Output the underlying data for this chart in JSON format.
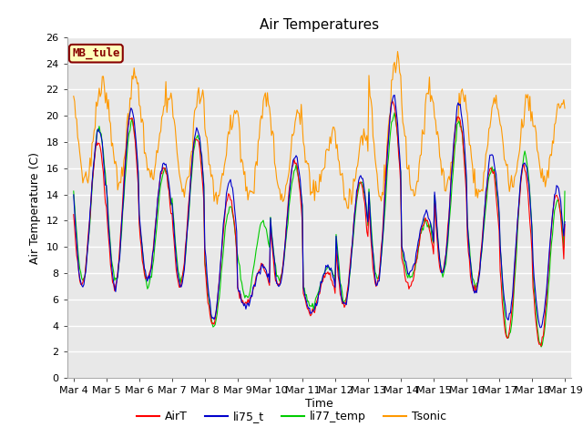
{
  "title": "Air Temperatures",
  "xlabel": "Time",
  "ylabel": "Air Temperature (C)",
  "ylim": [
    0,
    26
  ],
  "yticks": [
    0,
    2,
    4,
    6,
    8,
    10,
    12,
    14,
    16,
    18,
    20,
    22,
    24,
    26
  ],
  "xtick_labels": [
    "Mar 4",
    "Mar 5",
    "Mar 6",
    "Mar 7",
    "Mar 8",
    "Mar 9",
    "Mar 10",
    "Mar 11",
    "Mar 12",
    "Mar 13",
    "Mar 14",
    "Mar 15",
    "Mar 16",
    "Mar 17",
    "Mar 18",
    "Mar 19"
  ],
  "legend_labels": [
    "AirT",
    "li75_t",
    "li77_temp",
    "Tsonic"
  ],
  "legend_colors": [
    "#ff0000",
    "#0000cc",
    "#00cc00",
    "#ff9900"
  ],
  "annotation_text": "MB_tule",
  "annotation_color": "#880000",
  "annotation_bg": "#ffffbb",
  "plot_bg": "#e8e8e8",
  "grid_color": "#ffffff",
  "title_fontsize": 11,
  "label_fontsize": 9,
  "tick_fontsize": 8,
  "n_points": 480
}
